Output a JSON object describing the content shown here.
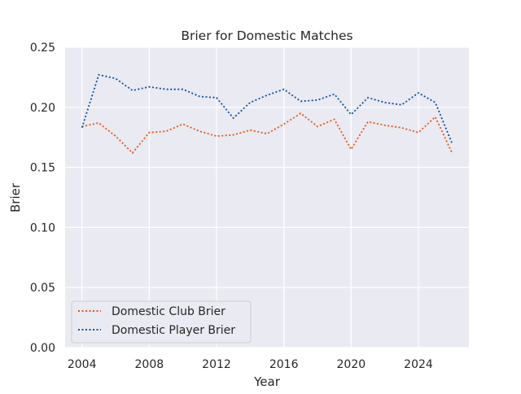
{
  "chart_data": {
    "type": "line",
    "title": "Brier for Domestic Matches",
    "xlabel": "Year",
    "ylabel": "Brier",
    "xlim": [
      2003,
      2027
    ],
    "ylim": [
      0.0,
      0.25
    ],
    "x_ticks": [
      "2004",
      "2008",
      "2012",
      "2016",
      "2020",
      "2024"
    ],
    "y_ticks": [
      "0.00",
      "0.05",
      "0.10",
      "0.15",
      "0.20",
      "0.25"
    ],
    "grid": true,
    "legend_position": "lower-left",
    "x": [
      2004,
      2005,
      2006,
      2007,
      2008,
      2009,
      2010,
      2011,
      2012,
      2013,
      2014,
      2015,
      2016,
      2017,
      2018,
      2019,
      2020,
      2021,
      2022,
      2023,
      2024,
      2025,
      2026
    ],
    "series": [
      {
        "name": "Domestic Club Brier",
        "color": "#e6550d",
        "values": [
          0.184,
          0.187,
          0.176,
          0.162,
          0.179,
          0.18,
          0.186,
          0.18,
          0.176,
          0.177,
          0.181,
          0.178,
          0.186,
          0.195,
          0.184,
          0.19,
          0.165,
          0.188,
          0.185,
          0.183,
          0.179,
          0.192,
          0.162
        ]
      },
      {
        "name": "Domestic Player Brier",
        "color": "#08519c",
        "values": [
          0.183,
          0.227,
          0.224,
          0.214,
          0.217,
          0.215,
          0.215,
          0.209,
          0.208,
          0.191,
          0.204,
          0.21,
          0.215,
          0.205,
          0.206,
          0.211,
          0.194,
          0.208,
          0.204,
          0.202,
          0.212,
          0.204,
          0.17
        ]
      }
    ]
  }
}
